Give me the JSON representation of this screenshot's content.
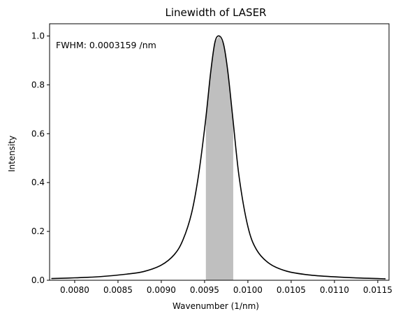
{
  "chart_data": {
    "type": "line",
    "title": "Linewidth of LASER",
    "xlabel": "Wavenumber (1/nm)",
    "ylabel": "Intensity",
    "annotation": "FWHM: 0.0003159 /nm",
    "xlim": [
      0.00771,
      0.01163
    ],
    "ylim": [
      0.0,
      1.05
    ],
    "x_ticks": [
      0.008,
      0.0085,
      0.009,
      0.0095,
      0.01,
      0.0105,
      0.011,
      0.0115
    ],
    "x_tick_labels": [
      "0.0080",
      "0.0085",
      "0.0090",
      "0.0095",
      "0.0100",
      "0.0105",
      "0.0110",
      "0.0115"
    ],
    "y_ticks": [
      0.0,
      0.2,
      0.4,
      0.6,
      0.8,
      1.0
    ],
    "y_tick_labels": [
      "0.0",
      "0.2",
      "0.4",
      "0.6",
      "0.8",
      "1.0"
    ],
    "grid": false,
    "legend": "none",
    "series": [
      {
        "color": "#000000",
        "x": [
          0.00773,
          0.008,
          0.0083,
          0.0086,
          0.0088,
          0.009,
          0.00915,
          0.00925,
          0.00935,
          0.00943,
          0.00951,
          0.00957,
          0.00962,
          0.00967,
          0.00972,
          0.00977,
          0.00983,
          0.0099,
          0.01,
          0.0101,
          0.01025,
          0.01045,
          0.0107,
          0.011,
          0.0113,
          0.01159
        ],
        "y": [
          0.007,
          0.01,
          0.015,
          0.025,
          0.036,
          0.062,
          0.105,
          0.165,
          0.275,
          0.43,
          0.65,
          0.85,
          0.975,
          1.0,
          0.965,
          0.85,
          0.65,
          0.42,
          0.22,
          0.125,
          0.068,
          0.037,
          0.022,
          0.014,
          0.009,
          0.006
        ]
      }
    ],
    "fwhm_band": {
      "x_start": 0.009515,
      "x_end": 0.009831,
      "color": "#bfbfbf"
    }
  }
}
